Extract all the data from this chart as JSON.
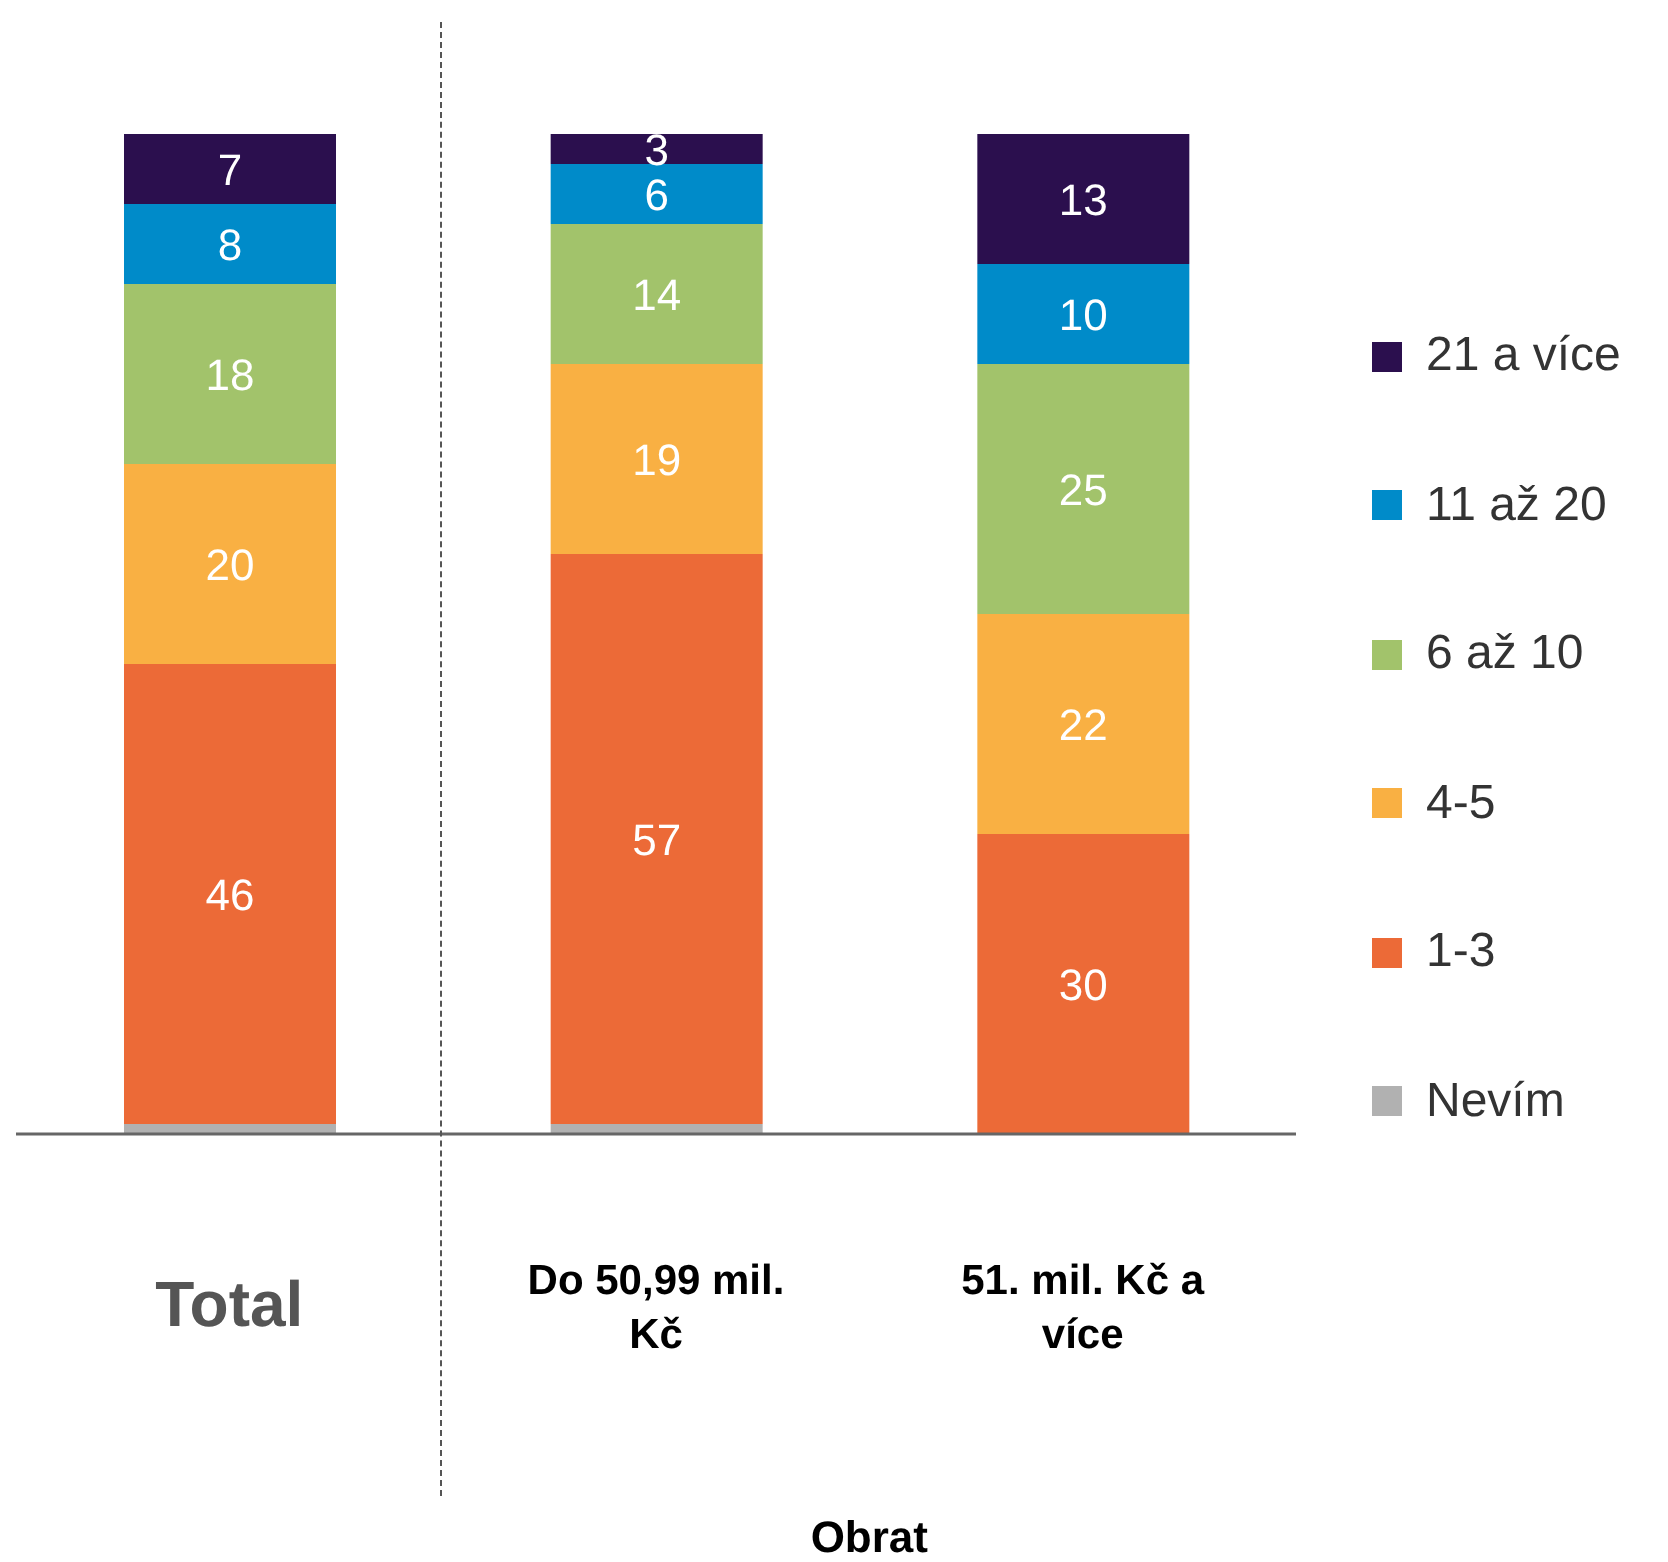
{
  "chart_data": {
    "type": "bar",
    "stacked": true,
    "xlabel": "Obrat",
    "legend": "right",
    "categories": [
      "Total",
      "Do 50,99 mil. Kč",
      "51. mil. Kč a více"
    ],
    "series": [
      {
        "name": "Nevím",
        "color": "#b1b1b1",
        "values": [
          1,
          1,
          0
        ],
        "value_labels": [
          null,
          null,
          null
        ]
      },
      {
        "name": "1-3",
        "color": "#ec6a37",
        "values": [
          46,
          57,
          30
        ],
        "value_labels": [
          "46",
          "57",
          "30"
        ]
      },
      {
        "name": "4-5",
        "color": "#f9b043",
        "values": [
          20,
          19,
          22
        ],
        "value_labels": [
          "20",
          "19",
          "22"
        ]
      },
      {
        "name": "6 až 10",
        "color": "#a2c36b",
        "values": [
          18,
          14,
          25
        ],
        "value_labels": [
          "18",
          "14",
          "25"
        ]
      },
      {
        "name": "11 až 20",
        "color": "#008bc9",
        "values": [
          8,
          6,
          10
        ],
        "value_labels": [
          "8",
          "6",
          "10"
        ]
      },
      {
        "name": "21 a více",
        "color": "#2b0f4e",
        "values": [
          7,
          3,
          13
        ],
        "value_labels": [
          "7",
          "3",
          "13"
        ]
      }
    ]
  }
}
